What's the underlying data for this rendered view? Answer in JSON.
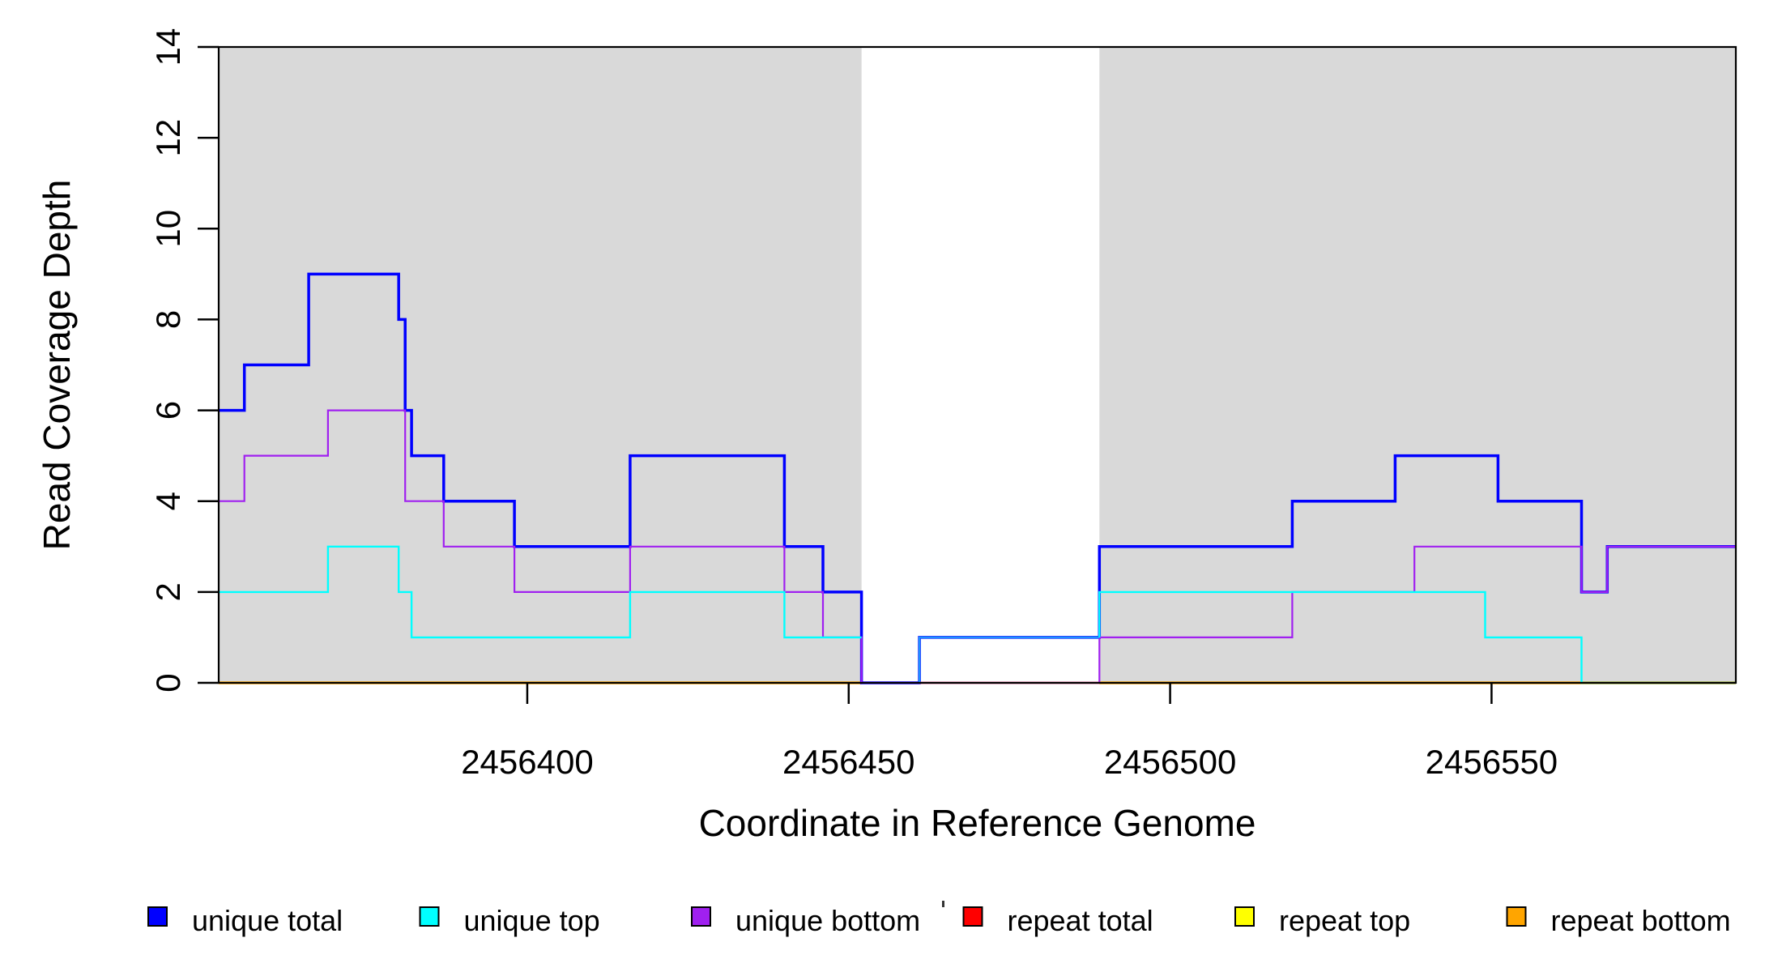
{
  "figure": {
    "background": "#FFFFFF"
  },
  "chart_data": {
    "type": "line",
    "subtype": "step-after-coverage",
    "title": "",
    "xlabel": "Coordinate in Reference Genome",
    "ylabel": "Read Coverage Depth",
    "xlim": [
      2456352,
      2456588
    ],
    "ylim": [
      0,
      14
    ],
    "grid": false,
    "x_ticks": [
      2456400,
      2456450,
      2456500,
      2456550
    ],
    "x_tick_labels": [
      "2456400",
      "2456450",
      "2456500",
      "2456550"
    ],
    "y_ticks": [
      0,
      2,
      4,
      6,
      8,
      10,
      12,
      14
    ],
    "y_tick_labels": [
      "0",
      "2",
      "4",
      "6",
      "8",
      "10",
      "12",
      "14"
    ],
    "highlight_regions": [
      {
        "x0": 2456352,
        "x1": 2456452,
        "color": "#D9D9D9"
      },
      {
        "x0": 2456489,
        "x1": 2456588,
        "color": "#D9D9D9"
      }
    ],
    "draw_order": [
      "repeat_top",
      "repeat_bottom",
      "unique_total",
      "unique_bottom",
      "repeat_total",
      "unique_top"
    ],
    "series": [
      {
        "id": "unique_total",
        "label": "unique total",
        "color": "#0000FF",
        "width": 3.5,
        "segments": [
          {
            "points": [
              [
                2456352,
                6
              ],
              [
                2456356,
                7
              ],
              [
                2456366,
                9
              ],
              [
                2456380,
                8
              ],
              [
                2456381,
                6
              ],
              [
                2456382,
                5
              ],
              [
                2456387,
                4
              ],
              [
                2456398,
                3
              ],
              [
                2456416,
                5
              ],
              [
                2456440,
                3
              ],
              [
                2456446,
                2
              ],
              [
                2456452,
                0
              ],
              [
                2456461,
                1
              ],
              [
                2456489,
                3
              ],
              [
                2456519,
                4
              ],
              [
                2456535,
                5
              ],
              [
                2456551,
                4
              ],
              [
                2456564,
                2
              ],
              [
                2456568,
                3
              ]
            ],
            "end": 2456588
          }
        ]
      },
      {
        "id": "unique_top",
        "label": "unique top",
        "color": "#00FFFF",
        "width": 2.4,
        "segments": [
          {
            "points": [
              [
                2456352,
                2
              ],
              [
                2456369,
                3
              ],
              [
                2456380,
                2
              ],
              [
                2456382,
                1
              ],
              [
                2456416,
                2
              ],
              [
                2456440,
                1
              ]
            ],
            "end": 2456452
          },
          {
            "color": "#1E90FF",
            "points": [
              [
                2456461,
                0
              ],
              [
                2456461,
                1
              ]
            ],
            "end": 2456489
          },
          {
            "points": [
              [
                2456489,
                1
              ],
              [
                2456489,
                2
              ],
              [
                2456549,
                1
              ],
              [
                2456564,
                0
              ]
            ],
            "end": 2456588
          }
        ]
      },
      {
        "id": "unique_bottom",
        "label": "unique bottom",
        "color": "#A020F0",
        "width": 2.2,
        "segments": [
          {
            "points": [
              [
                2456352,
                4
              ],
              [
                2456356,
                5
              ],
              [
                2456369,
                6
              ],
              [
                2456381,
                4
              ],
              [
                2456387,
                3
              ],
              [
                2456398,
                2
              ],
              [
                2456416,
                3
              ],
              [
                2456440,
                2
              ],
              [
                2456446,
                1
              ],
              [
                2456452,
                0
              ],
              [
                2456489,
                1
              ],
              [
                2456519,
                2
              ],
              [
                2456538,
                3
              ],
              [
                2456564,
                2
              ],
              [
                2456568,
                3
              ]
            ],
            "end": 2456588
          }
        ]
      },
      {
        "id": "repeat_total",
        "label": "repeat total",
        "color": "#E8103C",
        "width": 2.4,
        "segments": [
          {
            "points": [
              [
                2456461,
                0
              ]
            ],
            "end": 2456489
          }
        ]
      },
      {
        "id": "repeat_top",
        "label": "repeat top",
        "color": "#FFFF00",
        "width": 3,
        "segments": [
          {
            "points": [
              [
                2456352,
                0
              ]
            ],
            "end": 2456452
          },
          {
            "points": [
              [
                2456489,
                0
              ]
            ],
            "end": 2456588
          }
        ]
      },
      {
        "id": "repeat_bottom",
        "label": "repeat bottom",
        "color": "#FFA500",
        "width": 3.5,
        "segments": [
          {
            "points": [
              [
                2456352,
                0
              ]
            ],
            "end": 2456452
          },
          {
            "points": [
              [
                2456489,
                0
              ]
            ],
            "end": 2456588
          }
        ]
      }
    ],
    "legend": {
      "position": "bottom",
      "swatch_border": "#000000",
      "items": [
        {
          "label": "unique total",
          "color": "#0000FF"
        },
        {
          "label": "unique top",
          "color": "#00FFFF"
        },
        {
          "label": "unique bottom",
          "color": "#A020F0"
        },
        {
          "label": "repeat total",
          "color": "#FF0000"
        },
        {
          "label": "repeat top",
          "color": "#FFFF00"
        },
        {
          "label": "repeat bottom",
          "color": "#FFA500"
        }
      ]
    },
    "annotations": {
      "stray_mark": {
        "x": 1163,
        "y": 1112
      }
    }
  }
}
